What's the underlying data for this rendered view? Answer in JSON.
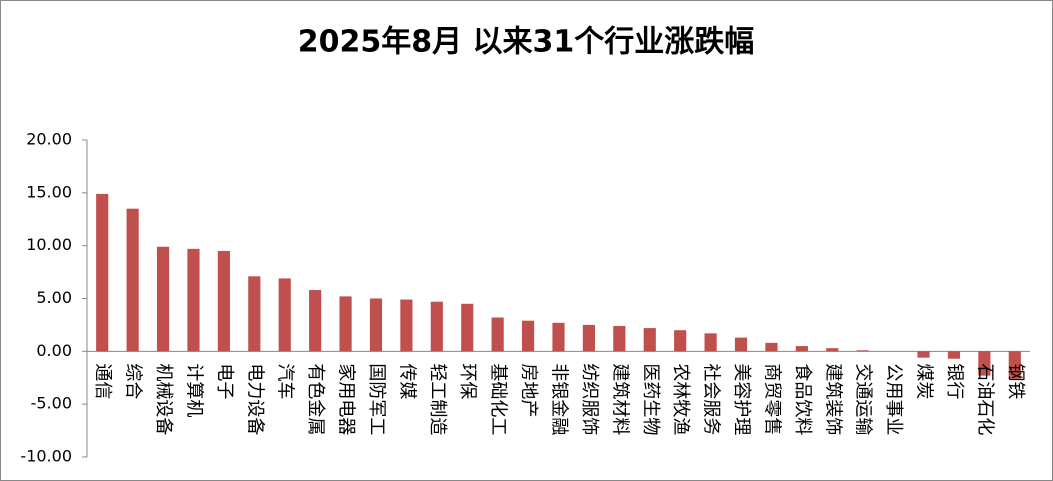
{
  "chart_data": {
    "type": "bar",
    "title": "2025年8月 以来31个行业涨跌幅",
    "categories": [
      "通信",
      "综合",
      "机械设备",
      "计算机",
      "电子",
      "电力设备",
      "汽车",
      "有色金属",
      "家用电器",
      "国防军工",
      "传媒",
      "轻工制造",
      "环保",
      "基础化工",
      "房地产",
      "非银金融",
      "纺织服饰",
      "建筑材料",
      "医药生物",
      "农林牧渔",
      "社会服务",
      "美容护理",
      "商贸零售",
      "食品饮料",
      "建筑装饰",
      "交通运输",
      "公用事业",
      "煤炭",
      "银行",
      "石油石化",
      "钢铁"
    ],
    "values": [
      14.9,
      13.5,
      9.9,
      9.7,
      9.5,
      7.1,
      6.9,
      5.8,
      5.2,
      5.0,
      4.9,
      4.7,
      4.5,
      3.2,
      2.9,
      2.7,
      2.5,
      2.4,
      2.2,
      2.0,
      1.7,
      1.3,
      0.8,
      0.5,
      0.3,
      0.1,
      0.0,
      -0.6,
      -0.7,
      -2.3,
      -2.6
    ],
    "color": "#c0504d",
    "ylim": [
      -10,
      20
    ],
    "yticks": [
      {
        "value": -10,
        "label": "-10.00"
      },
      {
        "value": -5,
        "label": "-5.00"
      },
      {
        "value": 0,
        "label": "0.00"
      },
      {
        "value": 5,
        "label": "5.00"
      },
      {
        "value": 10,
        "label": "10.00"
      },
      {
        "value": 15,
        "label": "15.00"
      },
      {
        "value": 20,
        "label": "20.00"
      }
    ],
    "grid": false
  }
}
